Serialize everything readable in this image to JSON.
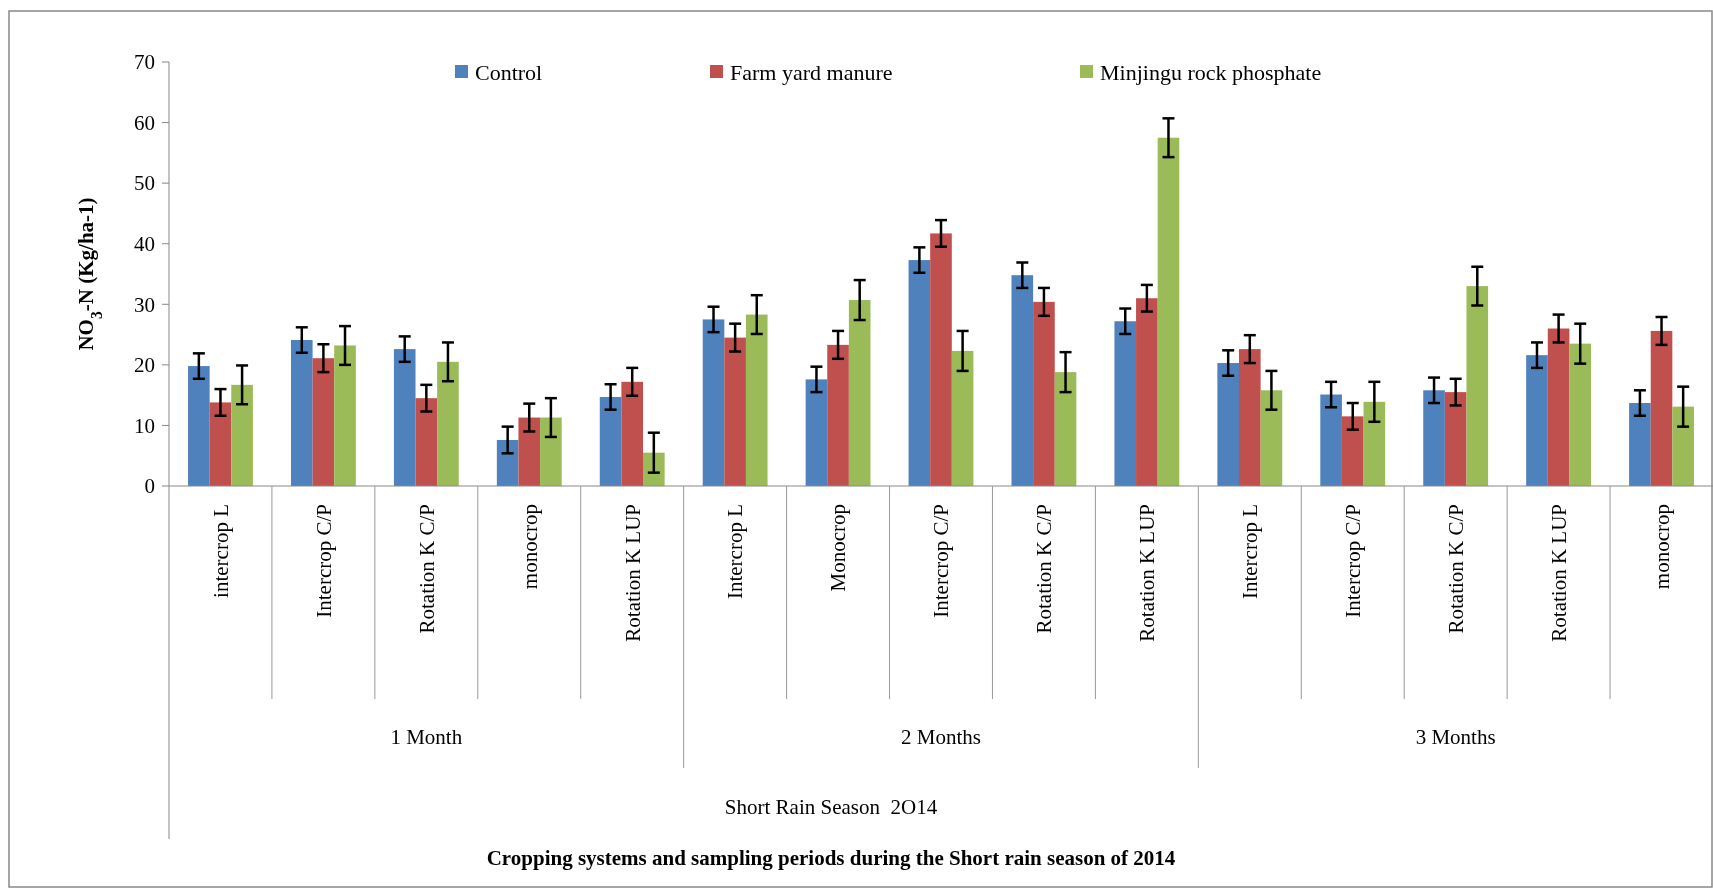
{
  "chart_data": {
    "type": "bar",
    "ylabel": "NO$_{3}$-N (Kg/ha-1)",
    "categories": [
      "intercrop L",
      "Intercrop C/P",
      "Rotation K C/P",
      "monocrop",
      "Rotation K LUP",
      "Intercrop L",
      "Monocrop",
      "Intercrop C/P",
      "Rotation K C/P",
      "Rotation K LUP",
      "Intercrop L",
      "Intercrop C/P",
      "Rotation K C/P",
      "Rotation K LUP",
      "monocrop"
    ],
    "series": [
      {
        "name": "Control",
        "color": "#4f81bd",
        "values": [
          19.8,
          24.1,
          22.6,
          7.6,
          14.7,
          27.5,
          17.6,
          37.3,
          34.8,
          27.2,
          20.3,
          15.1,
          15.8,
          21.6,
          13.7
        ],
        "errors": [
          2.1,
          2.1,
          2.1,
          2.2,
          2.1,
          2.1,
          2.1,
          2.1,
          2.1,
          2.1,
          2.1,
          2.1,
          2.1,
          2.1,
          2.1
        ]
      },
      {
        "name": "Farm yard manure",
        "color": "#c0504d",
        "values": [
          13.8,
          21.1,
          14.5,
          11.3,
          17.2,
          24.5,
          23.3,
          41.7,
          30.4,
          31.0,
          22.6,
          11.5,
          15.5,
          26.0,
          25.6
        ],
        "errors": [
          2.2,
          2.3,
          2.2,
          2.3,
          2.3,
          2.3,
          2.3,
          2.2,
          2.3,
          2.2,
          2.3,
          2.2,
          2.2,
          2.3,
          2.3
        ]
      },
      {
        "name": "Minjingu rock phosphate",
        "color": "#9bbb59",
        "values": [
          16.7,
          23.2,
          20.5,
          11.3,
          5.5,
          28.3,
          30.7,
          22.3,
          18.8,
          57.5,
          15.8,
          13.9,
          33.0,
          23.5,
          13.1
        ],
        "errors": [
          3.2,
          3.2,
          3.2,
          3.2,
          3.3,
          3.2,
          3.3,
          3.3,
          3.3,
          3.2,
          3.2,
          3.3,
          3.2,
          3.3,
          3.3
        ]
      }
    ],
    "ylim": [
      0,
      70
    ],
    "yticks": [
      0,
      10,
      20,
      30,
      40,
      50,
      60,
      70
    ],
    "grid": false,
    "legend": "top",
    "annotations": [
      "1 Month",
      "2 Months",
      "3 Months",
      "Short Rain Season  2O14",
      "Cropping systems and sampling periods during the Short rain season of 2014"
    ]
  }
}
